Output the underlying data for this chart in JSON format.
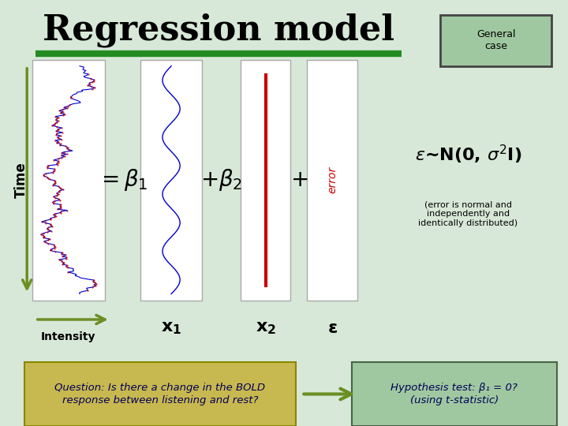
{
  "bg_color": "#d8e8d8",
  "title": "Regression model",
  "title_color": "#000000",
  "title_fontsize": 32,
  "green_box_label": "General\ncase",
  "green_line_color": "#228B22",
  "panel_bg": "#ffffff",
  "panel_border": "#cccccc",
  "time_arrow_color": "#6b8e23",
  "intensity_arrow_color": "#6b8e23",
  "time_label": "Time",
  "intensity_label": "Intensity",
  "x1_label": "x₁",
  "x2_label": "x₂",
  "epsilon_label": "ε",
  "eq_parts": [
    "= β₁",
    "+ β₂",
    "+"
  ],
  "error_text": "error",
  "epsilon_normal": "ε~N(0, σ²I)",
  "epsilon_note": "(error is normal and\nindependently and\nidentically distributed)",
  "question_text": "Question: Is there a change in the BOLD\nresponse between listening and rest?",
  "hypothesis_text": "Hypothesis test: β₁ = 0?\n(using t-statistic)",
  "q_box_color": "#c8b850",
  "h_box_color": "#a0c8a0",
  "arrow_color": "#6b8e23",
  "red_line_color": "#cc0000",
  "blue_signal_color": "#0000cc",
  "red_signal_color": "#cc0000"
}
